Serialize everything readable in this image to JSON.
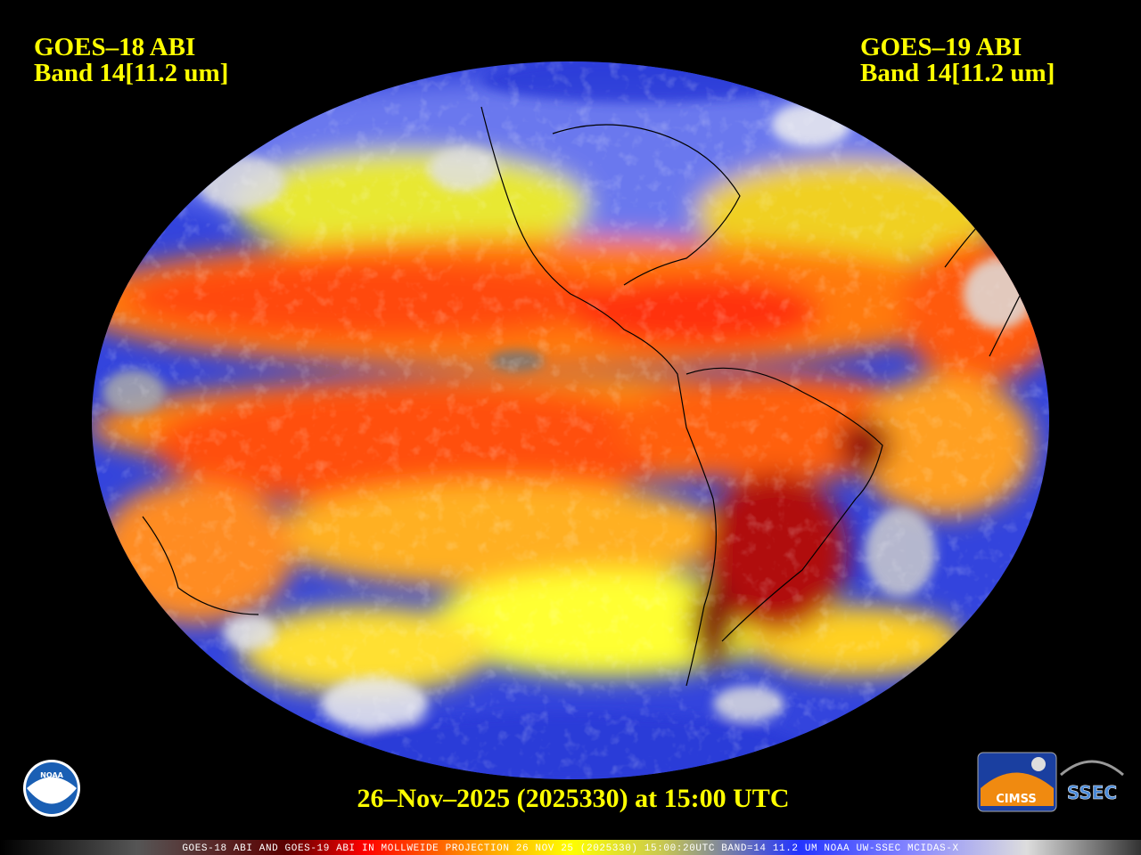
{
  "header": {
    "left": {
      "line1": "GOES–18 ABI",
      "line2": "Band 14[11.2 um]"
    },
    "right": {
      "line1": "GOES–19 ABI",
      "line2": "Band 14[11.2 um]"
    }
  },
  "timestamp": "26–Nov–2025 (2025330) at 15:00 UTC",
  "logos": {
    "noaa": "NOAA",
    "cimss": "CIMSS",
    "ssec": "SSEC"
  },
  "footer": "GOES-18 ABI AND GOES-19 ABI IN MOLLWEIDE PROJECTION 26 NOV 25 (2025330) 15:00:20UTC BAND=14 11.2 UM NOAA UW-SSEC MCIDAS-X"
}
